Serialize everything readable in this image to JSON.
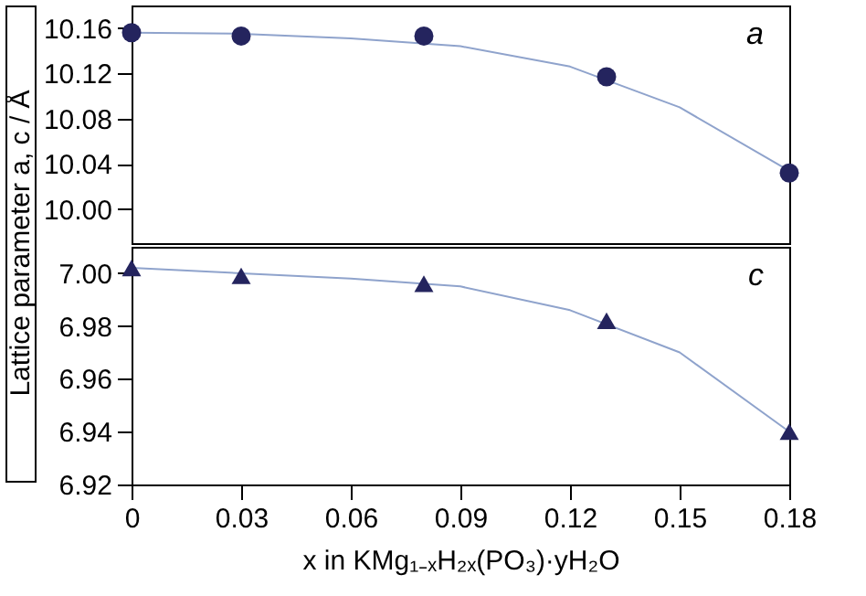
{
  "chart_data": [
    {
      "type": "scatter",
      "ylabel": "Lattice parameter  a, c / Å",
      "annotations": [
        "a"
      ],
      "x": [
        0,
        0.03,
        0.08,
        0.13,
        0.18
      ],
      "xlim": [
        0,
        0.18
      ],
      "xticks": [
        0,
        0.03,
        0.06,
        0.09,
        0.12,
        0.15,
        0.18
      ],
      "ylim": [
        9.97,
        10.18
      ],
      "yticks": [
        {
          "value": 10.0,
          "label": "10.00"
        },
        {
          "value": 10.04,
          "label": "10.04"
        },
        {
          "value": 10.08,
          "label": "10.08"
        },
        {
          "value": 10.12,
          "label": "10.12"
        },
        {
          "value": 10.16,
          "label": "10.16"
        }
      ],
      "tick_labels": "y",
      "grid": false,
      "marker": "circle",
      "series": [
        {
          "type": "line",
          "color": "#8fa3cc",
          "x": [
            0,
            0.03,
            0.06,
            0.09,
            0.12,
            0.15,
            0.18
          ],
          "values": [
            10.156,
            10.155,
            10.151,
            10.144,
            10.126,
            10.09,
            10.034
          ],
          "marker": "none",
          "line_style": "solid"
        },
        {
          "color": "#24245e",
          "values": [
            10.156,
            10.153,
            10.153,
            10.117,
            10.032
          ]
        }
      ]
    },
    {
      "type": "scatter",
      "xlabel": "x  in KMg₁₋ₓH₂ₓ(PO₃)·yH₂O",
      "annotations": [
        "c"
      ],
      "x": [
        0,
        0.03,
        0.08,
        0.13,
        0.18
      ],
      "xlim": [
        0,
        0.18
      ],
      "xticks": [
        0,
        {
          "value": 0.03,
          "label": "0.03"
        },
        {
          "value": 0.06,
          "label": "0.06"
        },
        {
          "value": 0.09,
          "label": "0.09"
        },
        {
          "value": 0.12,
          "label": "0.12"
        },
        {
          "value": 0.15,
          "label": "0.15"
        },
        {
          "value": 0.18,
          "label": "0.18"
        }
      ],
      "ylim": [
        6.92,
        7.01
      ],
      "yticks": [
        {
          "value": 6.92,
          "label": "6.92"
        },
        {
          "value": 6.94,
          "label": "6.94"
        },
        {
          "value": 6.96,
          "label": "6.96"
        },
        {
          "value": 6.98,
          "label": "6.98"
        },
        {
          "value": 7.0,
          "label": "7.00"
        }
      ],
      "grid": false,
      "marker": "triangle",
      "series": [
        {
          "type": "line",
          "color": "#8fa3cc",
          "x": [
            0,
            0.03,
            0.06,
            0.09,
            0.12,
            0.15,
            0.18
          ],
          "values": [
            7.002,
            7.0,
            6.998,
            6.995,
            6.986,
            6.97,
            6.94
          ],
          "marker": "none",
          "line_style": "solid"
        },
        {
          "color": "#24245e",
          "values": [
            7.002,
            6.999,
            6.996,
            6.982,
            6.94
          ]
        }
      ]
    }
  ]
}
